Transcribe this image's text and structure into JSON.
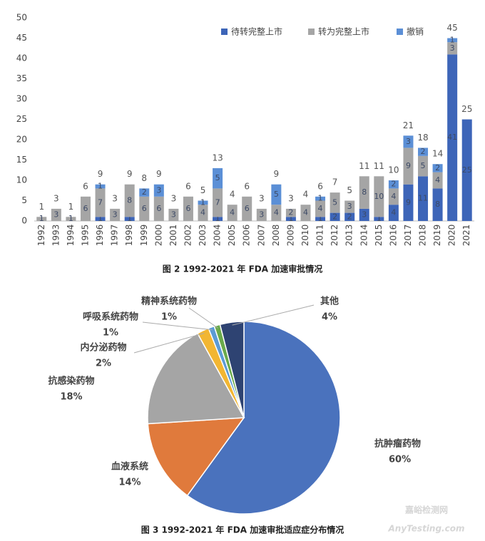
{
  "chart_data": [
    {
      "type": "bar",
      "stacked": true,
      "categories": [
        "1992",
        "1993",
        "1994",
        "1995",
        "1996",
        "1997",
        "1998",
        "1999",
        "2000",
        "2001",
        "2002",
        "2003",
        "2004",
        "2005",
        "2006",
        "2007",
        "2008",
        "2009",
        "2010",
        "2011",
        "2012",
        "2013",
        "2014",
        "2015",
        "2016",
        "2017",
        "2018",
        "2019",
        "2020",
        "2021"
      ],
      "series": [
        {
          "name": "待转完整上市",
          "color": "#3d65b8",
          "values": [
            0,
            0,
            0,
            0,
            1,
            0,
            1,
            0,
            0,
            0,
            0,
            0,
            1,
            0,
            0,
            0,
            0,
            1,
            0,
            1,
            2,
            2,
            3,
            1,
            4,
            9,
            11,
            8,
            41,
            25
          ]
        },
        {
          "name": "转为完整上市",
          "color": "#a5a5a5",
          "values": [
            1,
            3,
            1,
            6,
            7,
            3,
            8,
            6,
            6,
            3,
            6,
            4,
            7,
            4,
            6,
            3,
            4,
            2,
            4,
            4,
            5,
            3,
            8,
            10,
            4,
            9,
            5,
            4,
            3,
            0
          ]
        },
        {
          "name": "撤销",
          "color": "#5b8fd6",
          "values": [
            0,
            0,
            0,
            0,
            1,
            0,
            0,
            2,
            3,
            0,
            0,
            1,
            5,
            0,
            0,
            0,
            5,
            0,
            0,
            1,
            0,
            0,
            0,
            0,
            2,
            3,
            2,
            2,
            1,
            0
          ]
        }
      ],
      "totals": [
        1,
        3,
        1,
        6,
        9,
        3,
        9,
        8,
        9,
        3,
        6,
        5,
        13,
        4,
        6,
        3,
        9,
        3,
        4,
        6,
        7,
        5,
        11,
        11,
        10,
        21,
        18,
        14,
        45,
        25
      ],
      "ylim": [
        0,
        50
      ],
      "yticks": [
        0,
        5,
        10,
        15,
        20,
        25,
        30,
        35,
        40,
        45,
        50
      ],
      "grid": false,
      "legend": "top-right",
      "caption": "图 2  1992-2021 年 FDA 加速审批情况"
    },
    {
      "type": "pie",
      "categories": [
        "抗肿瘤药物",
        "血液系统",
        "抗感染药物",
        "内分泌药物",
        "呼吸系统药物",
        "精神系统药物",
        "其他"
      ],
      "values": [
        60,
        14,
        18,
        2,
        1,
        1,
        4
      ],
      "value_labels": [
        "60%",
        "14%",
        "18%",
        "2%",
        "1%",
        "1%",
        "4%"
      ],
      "colors": [
        "#4a72bd",
        "#e07a3c",
        "#a5a5a5",
        "#f2b632",
        "#5b9bd5",
        "#6aaa4b",
        "#2e4372"
      ],
      "caption": "图 3  1992-2021 年 FDA 加速审批适应症分布情况"
    }
  ],
  "watermark": {
    "title": "嘉峪检测网",
    "url": "AnyTesting.com"
  }
}
